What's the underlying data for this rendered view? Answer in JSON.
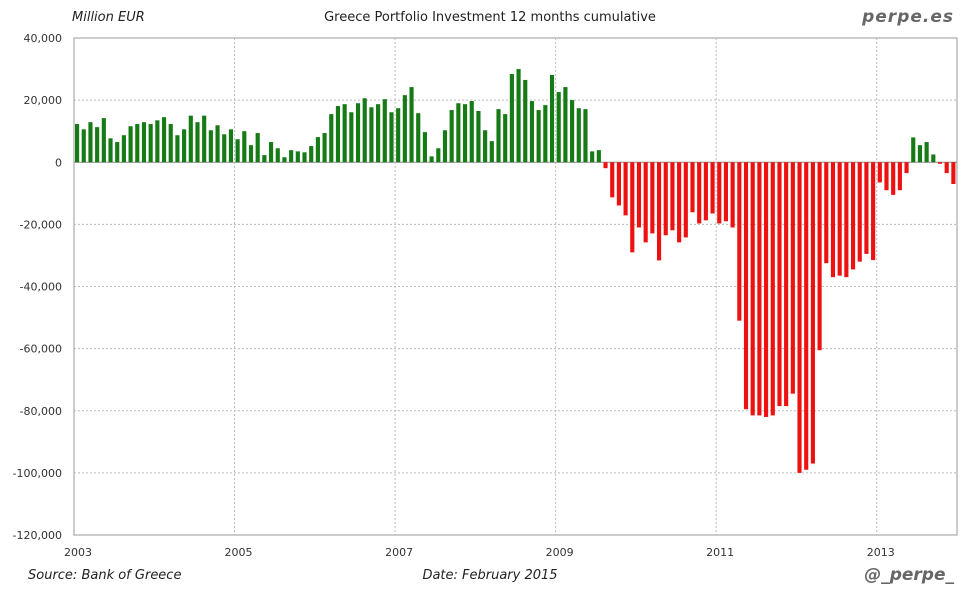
{
  "header": {
    "unit": "Million EUR",
    "title": "Greece Portfolio Investment 12 months cumulative",
    "brand": "perpe.es"
  },
  "footer": {
    "source": "Source: Bank of Greece",
    "date": "Date: February 2015",
    "handle": "@_perpe_"
  },
  "colors": {
    "positive": "#167a16",
    "negative": "#ee1111",
    "grid": "#bbbbbb"
  },
  "chart_data": {
    "type": "bar",
    "title": "Greece Portfolio Investment 12 months cumulative",
    "ylabel": "Million EUR",
    "ylim": [
      -120000,
      40000
    ],
    "yticks": [
      40000,
      20000,
      0,
      -20000,
      -40000,
      -60000,
      -80000,
      -100000,
      -120000
    ],
    "ytick_labels": [
      "40,000",
      "20,000",
      "0",
      "-20,000",
      "-40,000",
      "-60,000",
      "-80,000",
      "-100,000",
      "-120,000"
    ],
    "xticks": [
      "2003",
      "2005",
      "2007",
      "2009",
      "2011",
      "2013"
    ],
    "start": "2003-01",
    "frequency": "monthly",
    "grid": true,
    "values": [
      12300,
      10600,
      12900,
      11300,
      14200,
      7700,
      6500,
      8700,
      11600,
      12300,
      12900,
      12300,
      13500,
      14500,
      12300,
      8700,
      10600,
      15000,
      12900,
      15000,
      10300,
      11900,
      9000,
      10600,
      7400,
      10000,
      5500,
      9400,
      2300,
      6500,
      4500,
      1600,
      3900,
      3500,
      3200,
      5200,
      8100,
      9400,
      15500,
      18100,
      18700,
      16100,
      19000,
      20600,
      17700,
      18700,
      20300,
      16100,
      17400,
      21600,
      24200,
      15800,
      9700,
      1900,
      4500,
      10300,
      16800,
      19000,
      18700,
      19700,
      16500,
      10300,
      6800,
      17100,
      15500,
      28400,
      30000,
      26500,
      19700,
      16800,
      18400,
      28100,
      22600,
      24200,
      20000,
      17400,
      17100,
      3500,
      3900,
      -1900,
      -11300,
      -13900,
      -17100,
      -29000,
      -21000,
      -25800,
      -22900,
      -31600,
      -23500,
      -21900,
      -25800,
      -24200,
      -16100,
      -19700,
      -18700,
      -16500,
      -19700,
      -19000,
      -21000,
      -51000,
      -79500,
      -81500,
      -81500,
      -82000,
      -81500,
      -78500,
      -78500,
      -74500,
      -100000,
      -99000,
      -97000,
      -60500,
      -32500,
      -37000,
      -36500,
      -37000,
      -34500,
      -32000,
      -29500,
      -31500,
      -6500,
      -9000,
      -10500,
      -9000,
      -3500,
      8000,
      5500,
      6500,
      2500,
      -500,
      -3500,
      -7000
    ]
  }
}
